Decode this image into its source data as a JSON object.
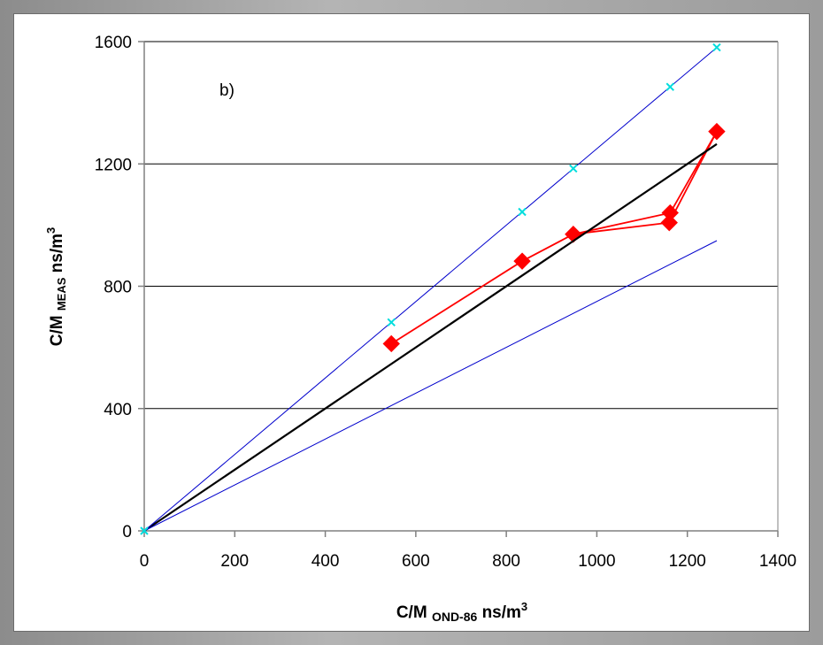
{
  "chart_data": {
    "type": "scatter",
    "annotation": "b)",
    "xlabel": {
      "main": "C/M",
      "sub": "OND-86",
      "unit": "ns/m",
      "sup": "3"
    },
    "ylabel": {
      "main": "C/M",
      "sub": "MEAS",
      "unit": "ns/m",
      "sup": "3"
    },
    "xlim": [
      0,
      1400
    ],
    "ylim": [
      0,
      1600
    ],
    "xticks": [
      0,
      200,
      400,
      600,
      800,
      1000,
      1200,
      1400
    ],
    "yticks": [
      0,
      400,
      800,
      1200,
      1600
    ],
    "ygrid": [
      400,
      800,
      1200,
      1600
    ],
    "series": [
      {
        "color": "#ff0000",
        "marker": "diamond",
        "x": [
          546,
          835,
          948,
          1160,
          1162,
          1265
        ],
        "y": [
          612,
          882,
          970,
          1008,
          1040,
          1306
        ],
        "path": [
          [
            546,
            612
          ],
          [
            835,
            882
          ],
          [
            948,
            970
          ],
          [
            1162,
            1040
          ],
          [
            1265,
            1306
          ],
          [
            1160,
            1008
          ],
          [
            948,
            970
          ]
        ]
      },
      {
        "color": "#000000",
        "marker": "none",
        "x": [
          0,
          1265
        ],
        "y": [
          0,
          1265
        ]
      },
      {
        "color": "#0000cc",
        "marker": "none",
        "x": [
          0,
          1265
        ],
        "y": [
          0,
          1581
        ]
      },
      {
        "color": "#0000cc",
        "marker": "none",
        "x": [
          0,
          1265
        ],
        "y": [
          0,
          949
        ]
      },
      {
        "color": "#00dddd",
        "marker": "x",
        "x": [
          0,
          546,
          835,
          948,
          1162,
          1265
        ],
        "y": [
          0,
          682,
          1043,
          1185,
          1452,
          1581
        ]
      }
    ],
    "colors": {
      "grid": "#000000",
      "axes": "#808080"
    }
  }
}
